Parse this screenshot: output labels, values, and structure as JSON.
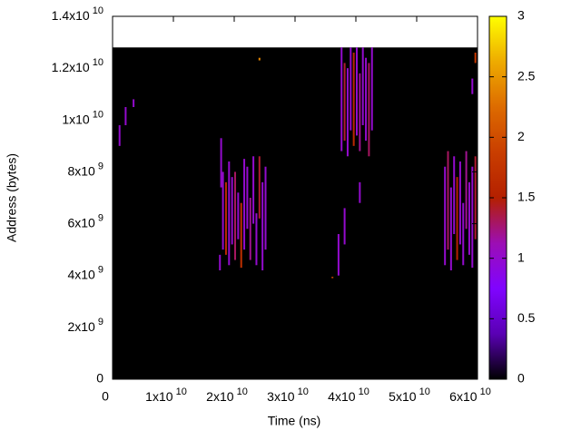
{
  "chart_data": {
    "type": "heatmap",
    "x_label": "Time (ns)",
    "y_label": "Address (bytes)",
    "xlim": [
      0,
      60000000000.0
    ],
    "ylim": [
      0,
      14000000000.0
    ],
    "xticks": [
      0,
      {
        "value": 10000000000.0,
        "label": "1x10",
        "exponent": "10"
      },
      {
        "value": 20000000000.0,
        "label": "2x10",
        "exponent": "10"
      },
      {
        "value": 30000000000.0,
        "label": "3x10",
        "exponent": "10"
      },
      {
        "value": 40000000000.0,
        "label": "4x10",
        "exponent": "10"
      },
      {
        "value": 50000000000.0,
        "label": "5x10",
        "exponent": "10"
      },
      {
        "value": 60000000000.0,
        "label": "6x10",
        "exponent": "10"
      }
    ],
    "yticks": [
      0,
      {
        "value": 2000000000.0,
        "label": "2x10",
        "exponent": "9"
      },
      {
        "value": 4000000000.0,
        "label": "4x10",
        "exponent": "9"
      },
      {
        "value": 6000000000.0,
        "label": "6x10",
        "exponent": "9"
      },
      {
        "value": 8000000000.0,
        "label": "8x10",
        "exponent": "9"
      },
      {
        "value": 10000000000.0,
        "label": "1x10",
        "exponent": "10"
      },
      {
        "value": 12000000000.0,
        "label": "1.2x10",
        "exponent": "10"
      },
      {
        "value": 14000000000.0,
        "label": "1.4x10",
        "exponent": "10"
      }
    ],
    "data_extent": {
      "x": [
        0,
        60000000000.0
      ],
      "y": [
        0,
        12800000000.0
      ],
      "background_value": 0
    },
    "cell_width": 300000000.0,
    "cells": [
      [
        1000000000.0,
        9000000000.0,
        9800000000.0,
        1
      ],
      [
        2000000000.0,
        9800000000.0,
        10500000000.0,
        1
      ],
      [
        3300000000.0,
        10500000000.0,
        10800000000.0,
        1
      ],
      [
        17500000000.0,
        4200000000.0,
        4800000000.0,
        1
      ],
      [
        17700000000.0,
        7400000000.0,
        9300000000.0,
        1
      ],
      [
        18000000000.0,
        5000000000.0,
        8000000000.0,
        1
      ],
      [
        18500000000.0,
        4800000000.0,
        7600000000.0,
        1.6
      ],
      [
        19000000000.0,
        4400000000.0,
        8400000000.0,
        1
      ],
      [
        19500000000.0,
        5200000000.0,
        7800000000.0,
        1
      ],
      [
        20000000000.0,
        4600000000.0,
        8000000000.0,
        1.3
      ],
      [
        20500000000.0,
        5400000000.0,
        7200000000.0,
        1
      ],
      [
        21000000000.0,
        4300000000.0,
        6800000000.0,
        1.7
      ],
      [
        21500000000.0,
        5000000000.0,
        8500000000.0,
        1
      ],
      [
        22000000000.0,
        5800000000.0,
        8200000000.0,
        1
      ],
      [
        22500000000.0,
        4600000000.0,
        7000000000.0,
        1.2
      ],
      [
        23000000000.0,
        6000000000.0,
        8600000000.0,
        1
      ],
      [
        23500000000.0,
        4400000000.0,
        6400000000.0,
        1
      ],
      [
        24000000000.0,
        6200000000.0,
        8600000000.0,
        1.4
      ],
      [
        24500000000.0,
        4200000000.0,
        7600000000.0,
        1
      ],
      [
        25000000000.0,
        5000000000.0,
        8200000000.0,
        1
      ],
      [
        36000000000.0,
        3900000000.0,
        3950000000.0,
        2
      ],
      [
        37000000000.0,
        4000000000.0,
        5600000000.0,
        1
      ],
      [
        38000000000.0,
        5200000000.0,
        6600000000.0,
        1
      ],
      [
        37500000000.0,
        8800000000.0,
        12800000000.0,
        1
      ],
      [
        38000000000.0,
        9200000000.0,
        12200000000.0,
        1.4
      ],
      [
        38500000000.0,
        8600000000.0,
        12000000000.0,
        1
      ],
      [
        39000000000.0,
        9600000000.0,
        12800000000.0,
        1
      ],
      [
        39500000000.0,
        9000000000.0,
        12600000000.0,
        1.6
      ],
      [
        40000000000.0,
        9400000000.0,
        12800000000.0,
        1
      ],
      [
        40500000000.0,
        8800000000.0,
        11800000000.0,
        1.2
      ],
      [
        41000000000.0,
        9800000000.0,
        12800000000.0,
        1
      ],
      [
        41500000000.0,
        9200000000.0,
        12400000000.0,
        1
      ],
      [
        42000000000.0,
        8600000000.0,
        12200000000.0,
        1.3
      ],
      [
        42500000000.0,
        9600000000.0,
        12800000000.0,
        1
      ],
      [
        40500000000.0,
        6800000000.0,
        7600000000.0,
        1
      ],
      [
        54500000000.0,
        4400000000.0,
        8200000000.0,
        1
      ],
      [
        55000000000.0,
        5000000000.0,
        8800000000.0,
        1.3
      ],
      [
        55500000000.0,
        4200000000.0,
        7400000000.0,
        1
      ],
      [
        56000000000.0,
        5600000000.0,
        8600000000.0,
        1
      ],
      [
        56500000000.0,
        4600000000.0,
        7800000000.0,
        1.5
      ],
      [
        57000000000.0,
        5200000000.0,
        8400000000.0,
        1
      ],
      [
        57500000000.0,
        4400000000.0,
        6800000000.0,
        1
      ],
      [
        58000000000.0,
        5800000000.0,
        8800000000.0,
        1.2
      ],
      [
        58500000000.0,
        4800000000.0,
        7600000000.0,
        1
      ],
      [
        59000000000.0,
        4300000000.0,
        8200000000.0,
        1
      ],
      [
        59500000000.0,
        5400000000.0,
        8600000000.0,
        1.4
      ],
      [
        59000000000.0,
        11000000000.0,
        11600000000.0,
        1
      ],
      [
        59500000000.0,
        12200000000.0,
        12600000000.0,
        1.8
      ],
      [
        24000000000.0,
        12300000000.0,
        12400000000.0,
        2.4
      ]
    ],
    "colorbar": {
      "lim": [
        0,
        3
      ],
      "ticks": [
        0,
        0.5,
        1,
        1.5,
        2,
        2.5,
        3
      ]
    },
    "colormap": [
      "#000000",
      "#5a00b4",
      "#8004ff",
      "#9c0eb4",
      "#b42000",
      "#c93e00",
      "#dd6b00",
      "#eeab00",
      "#ffff00"
    ]
  }
}
